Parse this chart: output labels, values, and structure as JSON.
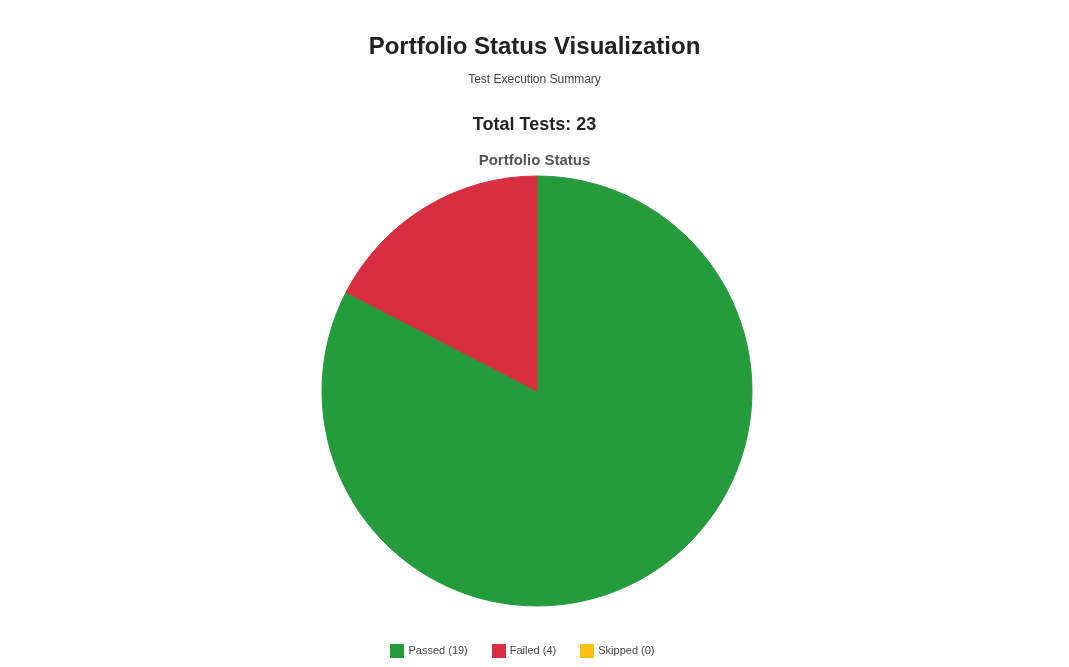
{
  "chart_data": {
    "type": "pie",
    "title": "Portfolio Status Visualization",
    "subtitle": "Test Execution Summary",
    "annotations": [
      "Total Tests: 23",
      "Portfolio Status"
    ],
    "categories": [
      "Passed (19)",
      "Failed (4)",
      "Skipped (0)"
    ],
    "values": [
      19,
      4,
      0
    ],
    "colors": [
      "#249c3c",
      "#d92e3f",
      "#fdbf12"
    ],
    "legend": "bottom"
  }
}
